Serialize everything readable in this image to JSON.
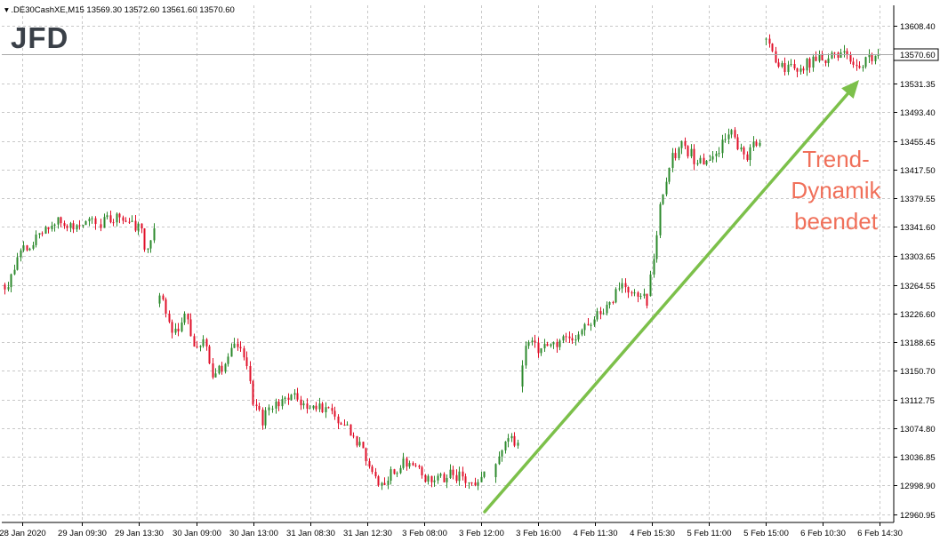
{
  "header": {
    "text": "▾ .DE30CashXE,M15  13569.30 13572.60 13561.60 13570.60"
  },
  "logo": "JFD",
  "colors": {
    "up": "#2c8a2c",
    "down": "#e0102a",
    "grid": "#c8c8c8",
    "arrow": "#7cc04a",
    "annotation": "#f0705a"
  },
  "chart_data": {
    "type": "candlestick",
    "symbol": ".DE30CashXE",
    "timeframe": "M15",
    "ohlc": {
      "open": 13569.3,
      "high": 13572.6,
      "low": 13561.6,
      "close": 13570.6
    },
    "current_price": 13570.6,
    "current_price_label": "13570.60",
    "ylim": [
      12950,
      13635
    ],
    "y_ticks": [
      "13608.40",
      "13570.60",
      "13531.35",
      "13493.40",
      "13455.45",
      "13417.50",
      "13379.55",
      "13341.60",
      "13303.65",
      "13264.55",
      "13226.60",
      "13188.65",
      "13150.70",
      "13112.75",
      "13074.80",
      "13036.85",
      "12998.90",
      "12960.95"
    ],
    "x_ticks": [
      "28 Jan 2020",
      "29 Jan 09:30",
      "29 Jan 13:30",
      "30 Jan 09:00",
      "30 Jan 13:00",
      "31 Jan 08:30",
      "31 Jan 12:30",
      "3 Feb 08:00",
      "3 Feb 12:00",
      "3 Feb 16:00",
      "4 Feb 11:30",
      "4 Feb 15:30",
      "5 Feb 11:00",
      "5 Feb 15:00",
      "6 Feb 10:30",
      "6 Feb 14:30"
    ],
    "segments": [
      {
        "start": 13265,
        "path": [
          [
            0.05,
            13262
          ],
          [
            0.2,
            13310
          ],
          [
            0.4,
            13330
          ],
          [
            0.55,
            13350
          ],
          [
            0.75,
            13343
          ],
          [
            1.0,
            13348
          ]
        ]
      },
      {
        "start": 13345,
        "path": [
          [
            0.1,
            13350
          ],
          [
            0.3,
            13352
          ],
          [
            0.6,
            13345
          ],
          [
            0.75,
            13342
          ],
          [
            0.85,
            13305
          ],
          [
            0.95,
            13330
          ],
          [
            1.0,
            13345
          ]
        ]
      },
      {
        "start": 13240,
        "path": [
          [
            0.05,
            13245
          ],
          [
            0.15,
            13200
          ],
          [
            0.25,
            13225
          ],
          [
            0.35,
            13175
          ],
          [
            0.45,
            13190
          ],
          [
            0.5,
            13140
          ],
          [
            0.6,
            13160
          ],
          [
            0.7,
            13185
          ],
          [
            0.8,
            13170
          ],
          [
            0.85,
            13110
          ],
          [
            0.95,
            13085
          ],
          [
            1.0,
            13100
          ]
        ]
      },
      {
        "start": 13100,
        "path": [
          [
            0.08,
            13120
          ],
          [
            0.18,
            13105
          ],
          [
            0.28,
            13100
          ],
          [
            0.4,
            13060
          ],
          [
            0.52,
            13000
          ],
          [
            0.62,
            13030
          ],
          [
            0.75,
            13005
          ],
          [
            0.85,
            13015
          ],
          [
            0.95,
            13000
          ],
          [
            1.0,
            13010
          ]
        ]
      },
      {
        "start": 13010,
        "path": [
          [
            0.3,
            13045
          ],
          [
            0.55,
            13065
          ],
          [
            0.8,
            13060
          ],
          [
            1.0,
            13052
          ]
        ]
      },
      {
        "start": 13130,
        "path": [
          [
            0.05,
            13185
          ],
          [
            0.2,
            13180
          ],
          [
            0.35,
            13190
          ],
          [
            0.5,
            13205
          ],
          [
            0.65,
            13230
          ],
          [
            0.8,
            13260
          ],
          [
            0.9,
            13262
          ],
          [
            1.0,
            13240
          ]
        ]
      },
      {
        "start": 13250,
        "path": [
          [
            0.05,
            13290
          ],
          [
            0.12,
            13380
          ],
          [
            0.2,
            13430
          ],
          [
            0.32,
            13450
          ],
          [
            0.45,
            13425
          ],
          [
            0.6,
            13440
          ],
          [
            0.75,
            13465
          ],
          [
            0.88,
            13435
          ],
          [
            1.0,
            13460
          ]
        ]
      },
      {
        "start": 13590,
        "path": [
          [
            0.1,
            13568
          ],
          [
            0.2,
            13548
          ],
          [
            0.35,
            13555
          ],
          [
            0.5,
            13565
          ],
          [
            0.7,
            13568
          ],
          [
            0.82,
            13558
          ],
          [
            0.9,
            13562
          ],
          [
            1.0,
            13570
          ]
        ]
      }
    ],
    "annotation": [
      "Trend-",
      "Dynamik",
      "beendet"
    ]
  }
}
